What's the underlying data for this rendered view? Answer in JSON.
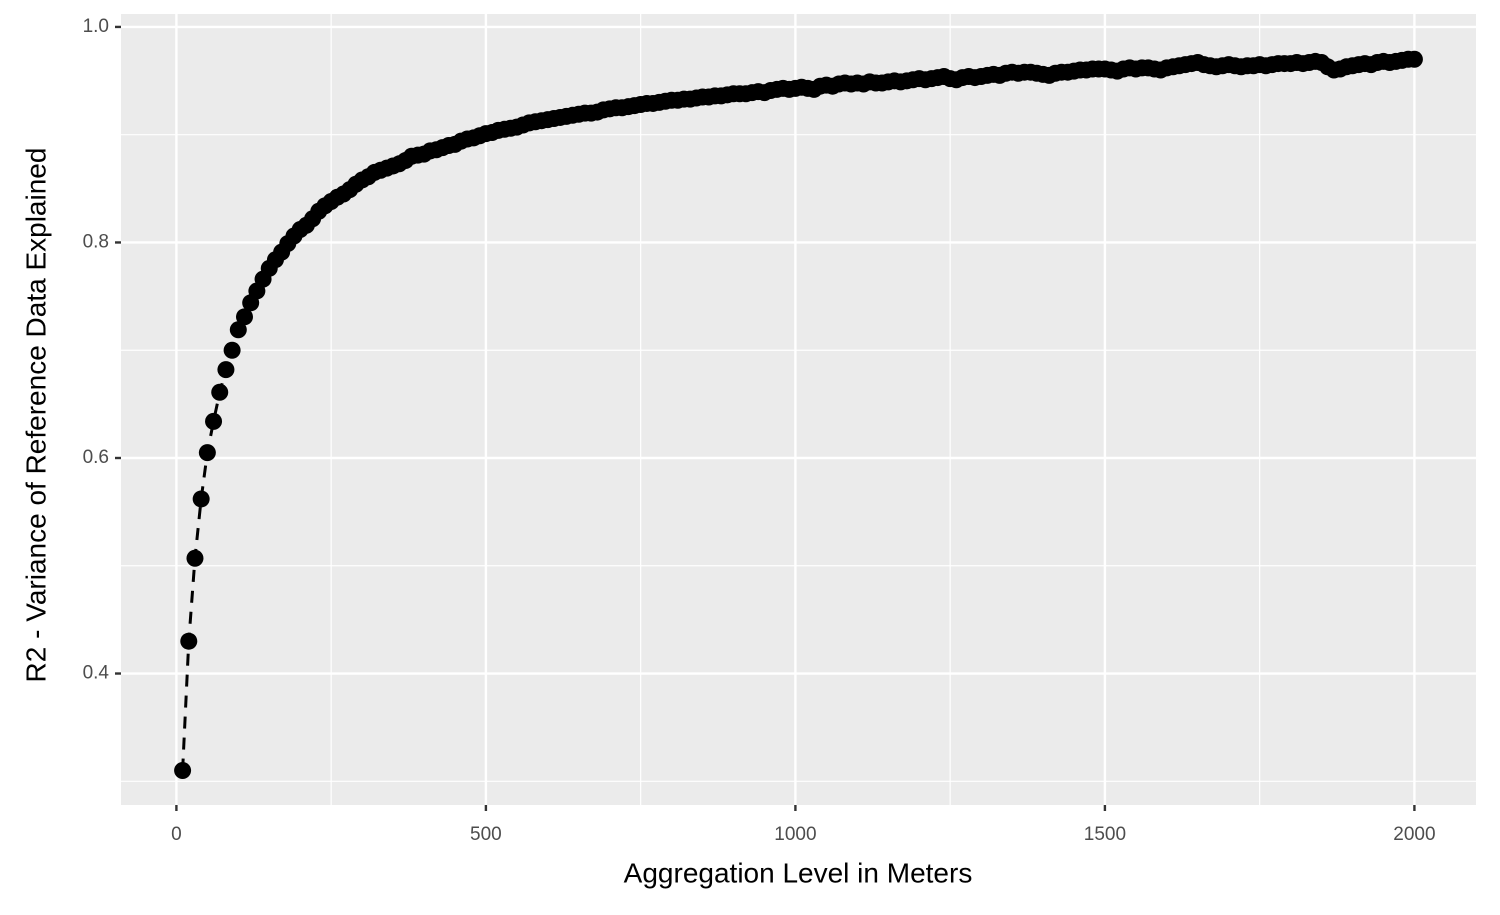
{
  "chart_data": {
    "type": "line",
    "x_label": "Aggregation Level in Meters",
    "y_label": "R2 - Variance of Reference Data Explained",
    "color": "#000000",
    "line_style": "dashed",
    "points": true,
    "grid": true,
    "xlim": [
      -89.5,
      2099.5
    ],
    "xticks": [
      0,
      500,
      1000,
      1500,
      2000
    ],
    "x_minor_gridlines": [
      250,
      750,
      1250,
      1750
    ],
    "ylim": [
      0.278,
      1.012
    ],
    "yticks": [
      0.4,
      0.6,
      0.8,
      {
        "value": 1,
        "label": "1.0"
      }
    ],
    "y_minor_gridlines": [
      0.3,
      0.5,
      0.7,
      0.9
    ],
    "x": [
      10,
      20,
      30,
      40,
      50,
      60,
      70,
      80,
      90,
      100,
      110,
      120,
      130,
      140,
      150,
      160,
      170,
      180,
      190,
      200,
      210,
      220,
      230,
      240,
      250,
      260,
      270,
      280,
      290,
      300,
      310,
      320,
      330,
      340,
      350,
      360,
      370,
      380,
      390,
      400,
      410,
      420,
      430,
      440,
      450,
      460,
      470,
      480,
      490,
      500,
      510,
      520,
      530,
      540,
      550,
      560,
      570,
      580,
      590,
      600,
      610,
      620,
      630,
      640,
      650,
      660,
      670,
      680,
      690,
      700,
      710,
      720,
      730,
      740,
      750,
      760,
      770,
      780,
      790,
      800,
      810,
      820,
      830,
      840,
      850,
      860,
      870,
      880,
      890,
      900,
      910,
      920,
      930,
      940,
      950,
      960,
      970,
      980,
      990,
      1000,
      1010,
      1020,
      1030,
      1040,
      1050,
      1060,
      1070,
      1080,
      1090,
      1100,
      1110,
      1120,
      1130,
      1140,
      1150,
      1160,
      1170,
      1180,
      1190,
      1200,
      1210,
      1220,
      1230,
      1240,
      1250,
      1260,
      1270,
      1280,
      1290,
      1300,
      1310,
      1320,
      1330,
      1340,
      1350,
      1360,
      1370,
      1380,
      1390,
      1400,
      1410,
      1420,
      1430,
      1440,
      1450,
      1460,
      1470,
      1480,
      1490,
      1500,
      1510,
      1520,
      1530,
      1540,
      1550,
      1560,
      1570,
      1580,
      1590,
      1600,
      1610,
      1620,
      1630,
      1640,
      1650,
      1660,
      1670,
      1680,
      1690,
      1700,
      1710,
      1720,
      1730,
      1740,
      1750,
      1760,
      1770,
      1780,
      1790,
      1800,
      1810,
      1820,
      1830,
      1840,
      1850,
      1860,
      1870,
      1880,
      1890,
      1900,
      1910,
      1920,
      1930,
      1940,
      1950,
      1960,
      1970,
      1980,
      1990,
      2000
    ],
    "values": [
      0.31,
      0.43,
      0.507,
      0.562,
      0.605,
      0.634,
      0.661,
      0.682,
      0.7,
      0.719,
      0.731,
      0.744,
      0.755,
      0.766,
      0.776,
      0.784,
      0.791,
      0.799,
      0.806,
      0.812,
      0.816,
      0.822,
      0.829,
      0.834,
      0.838,
      0.842,
      0.845,
      0.849,
      0.854,
      0.858,
      0.861,
      0.865,
      0.867,
      0.869,
      0.871,
      0.873,
      0.876,
      0.88,
      0.881,
      0.882,
      0.885,
      0.886,
      0.888,
      0.89,
      0.891,
      0.894,
      0.896,
      0.897,
      0.899,
      0.901,
      0.902,
      0.904,
      0.905,
      0.906,
      0.907,
      0.909,
      0.911,
      0.912,
      0.913,
      0.914,
      0.915,
      0.916,
      0.917,
      0.918,
      0.919,
      0.92,
      0.92,
      0.921,
      0.923,
      0.924,
      0.925,
      0.925,
      0.926,
      0.927,
      0.928,
      0.929,
      0.929,
      0.93,
      0.931,
      0.932,
      0.932,
      0.933,
      0.933,
      0.934,
      0.935,
      0.935,
      0.936,
      0.936,
      0.937,
      0.938,
      0.938,
      0.938,
      0.939,
      0.94,
      0.939,
      0.941,
      0.942,
      0.943,
      0.942,
      0.943,
      0.944,
      0.943,
      0.942,
      0.945,
      0.946,
      0.945,
      0.947,
      0.948,
      0.947,
      0.948,
      0.947,
      0.949,
      0.948,
      0.948,
      0.949,
      0.95,
      0.949,
      0.95,
      0.951,
      0.952,
      0.951,
      0.952,
      0.953,
      0.954,
      0.952,
      0.951,
      0.953,
      0.954,
      0.953,
      0.954,
      0.955,
      0.956,
      0.955,
      0.957,
      0.958,
      0.957,
      0.958,
      0.958,
      0.957,
      0.956,
      0.955,
      0.957,
      0.958,
      0.958,
      0.959,
      0.96,
      0.96,
      0.961,
      0.961,
      0.961,
      0.96,
      0.959,
      0.961,
      0.962,
      0.961,
      0.962,
      0.962,
      0.961,
      0.96,
      0.962,
      0.963,
      0.964,
      0.965,
      0.966,
      0.967,
      0.965,
      0.964,
      0.963,
      0.964,
      0.965,
      0.964,
      0.963,
      0.964,
      0.964,
      0.965,
      0.964,
      0.965,
      0.966,
      0.966,
      0.966,
      0.967,
      0.966,
      0.967,
      0.968,
      0.967,
      0.963,
      0.96,
      0.961,
      0.963,
      0.964,
      0.965,
      0.966,
      0.965,
      0.967,
      0.968,
      0.967,
      0.968,
      0.969,
      0.97,
      0.97
    ]
  }
}
